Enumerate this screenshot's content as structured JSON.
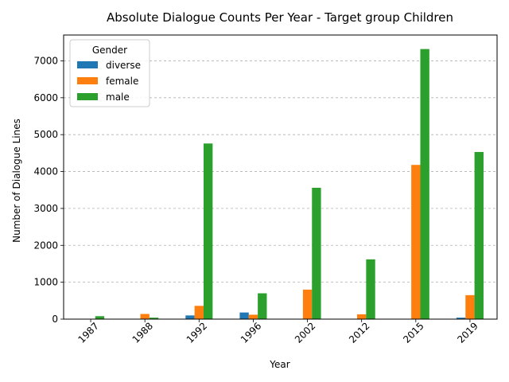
{
  "chart_data": {
    "type": "bar",
    "title": "Absolute Dialogue Counts Per Year - Target group Children",
    "xlabel": "Year",
    "ylabel": "Number of Dialogue Lines",
    "categories": [
      "1987",
      "1988",
      "1992",
      "1996",
      "2002",
      "2012",
      "2015",
      "2019"
    ],
    "ylim": [
      0,
      7700
    ],
    "yticks": [
      0,
      1000,
      2000,
      3000,
      4000,
      5000,
      6000,
      7000
    ],
    "grid": "y-dashed",
    "legend": {
      "title": "Gender",
      "placement": "top-left"
    },
    "series": [
      {
        "name": "diverse",
        "color": "#1f77b4",
        "values": [
          0,
          10,
          100,
          180,
          10,
          0,
          0,
          40
        ]
      },
      {
        "name": "female",
        "color": "#ff7f0e",
        "values": [
          10,
          140,
          360,
          120,
          800,
          130,
          4180,
          650
        ]
      },
      {
        "name": "male",
        "color": "#2ca02c",
        "values": [
          80,
          40,
          4760,
          700,
          3560,
          1620,
          7320,
          4530
        ]
      }
    ]
  }
}
